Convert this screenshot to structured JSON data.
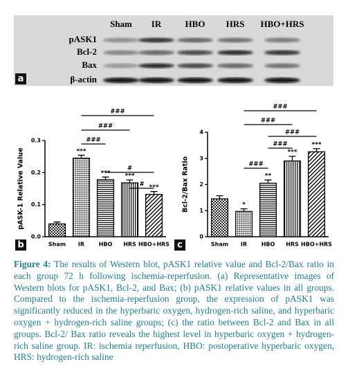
{
  "blot": {
    "lanes": [
      "Sham",
      "IR",
      "HBO",
      "HRS",
      "HBO+HRS"
    ],
    "rows": [
      "pASK1",
      "Bcl-2",
      "Bax",
      "β-actin"
    ],
    "panel": "a"
  },
  "chart_data": [
    {
      "type": "bar",
      "panel": "b",
      "y_label": "pASK-1 Relative Value",
      "categories": [
        "Sham",
        "IR",
        "HBO",
        "HRS",
        "HBO+HRS"
      ],
      "values": [
        0.04,
        0.245,
        0.178,
        0.168,
        0.132
      ],
      "errors": [
        0.006,
        0.009,
        0.008,
        0.009,
        0.009
      ],
      "significance": [
        null,
        "***",
        "***",
        "***",
        "***"
      ],
      "brackets": [
        "###",
        "###",
        "###",
        "#",
        "#"
      ],
      "ylim": [
        0,
        0.3
      ],
      "yticks": [
        {
          "value": 0,
          "label": "0.0"
        },
        0.1,
        0.2,
        0.3
      ]
    },
    {
      "type": "bar",
      "panel": "c",
      "y_label": "Bcl-2/Bax Ratio",
      "categories": [
        "Sham",
        "IR",
        "HBO",
        "HRS",
        "HBO+HRS"
      ],
      "values": [
        1.45,
        0.97,
        2.05,
        2.9,
        3.25
      ],
      "errors": [
        0.12,
        0.1,
        0.12,
        0.18,
        0.12
      ],
      "significance": [
        null,
        "*",
        "**",
        "***",
        "***"
      ],
      "brackets": [
        "###",
        "###",
        "###",
        "###",
        "###"
      ],
      "ylim": [
        0,
        4
      ],
      "yticks": [
        0,
        1,
        2,
        3,
        4
      ]
    }
  ],
  "caption": {
    "label": "Figure 4:",
    "text": "The results of Western blot, pASK1 relative value and Bcl-2/Bax ratio in each group 72 h following ischemia-reperfusion. (a) Representative images of Western blots for pASK1, Bcl-2, and Bax; (b) pASK1 relative values in all groups. Compared to the ischemia-reperfusion group, the expression of pASK1 was significantly reduced in the hyperbaric oxygen, hydrogen-rich saline, and hyperbaric oxygen + hydrogen-rich saline groups; (c) the ratio between Bcl-2 and Bax in all groups. Bcl-2/ Bax ratio reveals the highest level in hyperbaric oxygen + hydrogen-rich saline group. IR: ischemia reperfusion, HBO: postoperative hyperbaric oxygen, HRS: hydrogen-rich saline"
  }
}
